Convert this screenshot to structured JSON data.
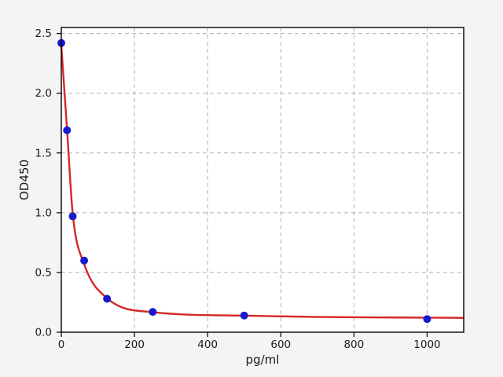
{
  "chart_data": {
    "type": "scatter",
    "title": "",
    "xlabel": "pg/ml",
    "ylabel": "OD450",
    "xlim": [
      0,
      1100
    ],
    "ylim": [
      0,
      2.55
    ],
    "xticks": [
      0,
      200,
      400,
      600,
      800,
      1000
    ],
    "xtick_labels": [
      "0",
      "200",
      "400",
      "600",
      "800",
      "1000"
    ],
    "yticks": [
      0,
      0.5,
      1.0,
      1.5,
      2.0,
      2.5
    ],
    "ytick_labels": [
      "0.0",
      "0.5",
      "1.0",
      "1.5",
      "2.0",
      "2.5"
    ],
    "grid": {
      "visible": true,
      "style": "dashed",
      "color": "#b0b0b0"
    },
    "legend": "none",
    "figure_bg": "#f4f4f4",
    "plot_bg": "#ffffff",
    "spine_color": "#000000",
    "series": [
      {
        "name": "standard-points",
        "type": "scatter",
        "color": "#1a1acc",
        "marker": "circle",
        "x": [
          0,
          15.625,
          31.25,
          62.5,
          125,
          250,
          500,
          1000
        ],
        "y": [
          2.42,
          1.69,
          0.97,
          0.6,
          0.28,
          0.17,
          0.14,
          0.11
        ]
      },
      {
        "name": "4pl-fit-curve",
        "type": "line",
        "color": "#d62728",
        "x": [
          0,
          15.625,
          31.25,
          62.5,
          125,
          250,
          500,
          700,
          1000,
          1100
        ],
        "y": [
          2.4,
          1.7,
          0.99,
          0.57,
          0.285,
          0.168,
          0.139,
          0.128,
          0.122,
          0.12
        ]
      }
    ]
  }
}
